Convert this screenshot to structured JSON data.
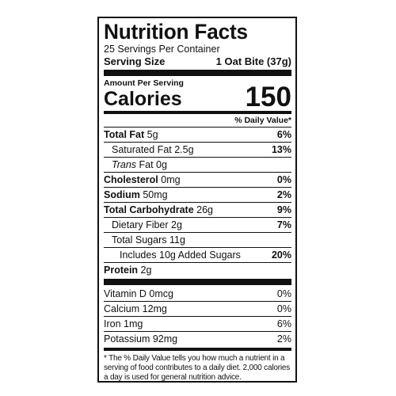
{
  "title": "Nutrition Facts",
  "servings_per_container": "25 Servings Per Container",
  "serving_size_label": "Serving Size",
  "serving_size_value": "1 Oat Bite (37g)",
  "amount_per_serving": "Amount Per Serving",
  "calories_label": "Calories",
  "calories_value": "150",
  "daily_value_header": "% Daily Value*",
  "nutrients": [
    {
      "name": "Total Fat",
      "amount": "5g",
      "dv": "6%"
    },
    {
      "name": "Saturated Fat",
      "amount": "2.5g",
      "dv": "13%"
    },
    {
      "name": "Trans",
      "amount": "Fat 0g",
      "dv": ""
    },
    {
      "name": "Cholesterol",
      "amount": "0mg",
      "dv": "0%"
    },
    {
      "name": "Sodium",
      "amount": "50mg",
      "dv": "2%"
    },
    {
      "name": "Total Carbohydrate",
      "amount": "26g",
      "dv": "9%"
    },
    {
      "name": "Dietary Fiber",
      "amount": "2g",
      "dv": "7%"
    },
    {
      "name": "Total Sugars",
      "amount": "11g",
      "dv": ""
    },
    {
      "name": "Includes 10g Added Sugars",
      "amount": "",
      "dv": "20%"
    },
    {
      "name": "Protein",
      "amount": "2g",
      "dv": ""
    }
  ],
  "vitamins": [
    {
      "name": "Vitamin D 0mcg",
      "dv": "0%"
    },
    {
      "name": "Calcium 12mg",
      "dv": "0%"
    },
    {
      "name": "Iron 1mg",
      "dv": "6%"
    },
    {
      "name": "Potassium 92mg",
      "dv": "2%"
    }
  ],
  "footnote": "* The % Daily Value tells you how much a nutrient in a serving of food contributes to a daily diet. 2,000 calories a day is used for general nutrition advice."
}
